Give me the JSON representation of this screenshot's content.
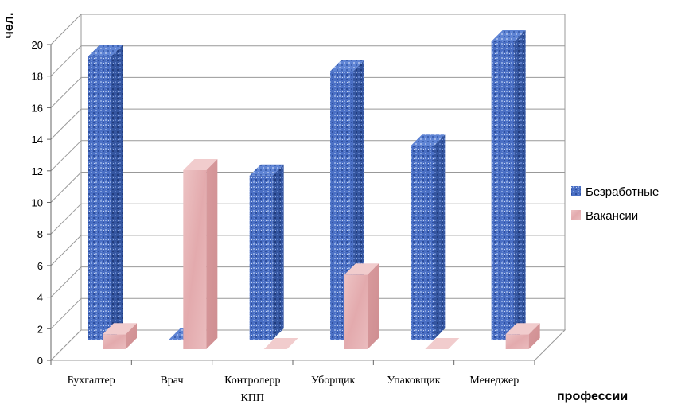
{
  "chart_data": {
    "type": "bar",
    "three_d": true,
    "categories": [
      "Бухгалтер",
      "Врач",
      "Контролерр КПП",
      "Уборщик",
      "Упаковщик",
      "Менеджер"
    ],
    "series": [
      {
        "name": "Безработные",
        "values": [
          19,
          0,
          11,
          18,
          13,
          20
        ],
        "color": "#4a6fc4"
      },
      {
        "name": "Вакансии",
        "values": [
          1,
          12,
          0,
          5,
          0,
          1
        ],
        "color": "#e8b4b6"
      }
    ],
    "xlabel": "профессии",
    "ylabel": "чел.",
    "ylim": [
      0,
      20
    ],
    "yticks": [
      0,
      2,
      4,
      6,
      8,
      10,
      12,
      14,
      16,
      18,
      20
    ],
    "grid": true,
    "legend": "right"
  }
}
